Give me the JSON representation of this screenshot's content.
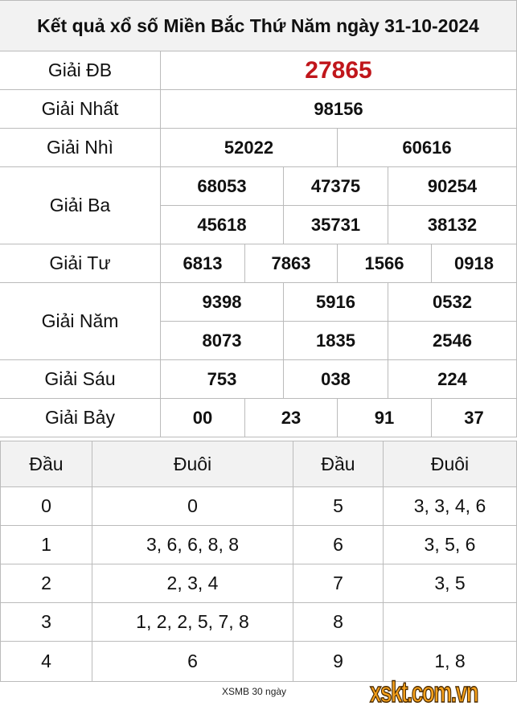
{
  "title": "Kết quả xổ số Miền Bắc Thứ Năm ngày 31-10-2024",
  "prizes": {
    "db": {
      "label": "Giải ĐB",
      "values": [
        "27865"
      ]
    },
    "nhat": {
      "label": "Giải Nhất",
      "values": [
        "98156"
      ]
    },
    "nhi": {
      "label": "Giải Nhì",
      "values": [
        "52022",
        "60616"
      ]
    },
    "ba": {
      "label": "Giải Ba",
      "values": [
        "68053",
        "47375",
        "90254",
        "45618",
        "35731",
        "38132"
      ]
    },
    "tu": {
      "label": "Giải Tư",
      "values": [
        "6813",
        "7863",
        "1566",
        "0918"
      ]
    },
    "nam": {
      "label": "Giải Năm",
      "values": [
        "9398",
        "5916",
        "0532",
        "8073",
        "1835",
        "2546"
      ]
    },
    "sau": {
      "label": "Giải Sáu",
      "values": [
        "753",
        "038",
        "224"
      ]
    },
    "bay": {
      "label": "Giải Bảy",
      "values": [
        "00",
        "23",
        "91",
        "37"
      ]
    }
  },
  "loto": {
    "headers": [
      "Đầu",
      "Đuôi",
      "Đầu",
      "Đuôi"
    ],
    "rows": [
      [
        "0",
        "0",
        "5",
        "3, 3, 4, 6"
      ],
      [
        "1",
        "3, 6, 6, 8, 8",
        "6",
        "3, 5, 6"
      ],
      [
        "2",
        "2, 3, 4",
        "7",
        "3, 5"
      ],
      [
        "3",
        "1, 2, 2, 5, 7, 8",
        "8",
        ""
      ],
      [
        "4",
        "6",
        "9",
        "1, 8"
      ]
    ]
  },
  "footer": {
    "link": "XSMB 30 ngày",
    "logo": "xskt.com.vn"
  },
  "colors": {
    "special": "#c0161b",
    "header_bg": "#f2f2f2",
    "logo": "#f7a21c"
  }
}
